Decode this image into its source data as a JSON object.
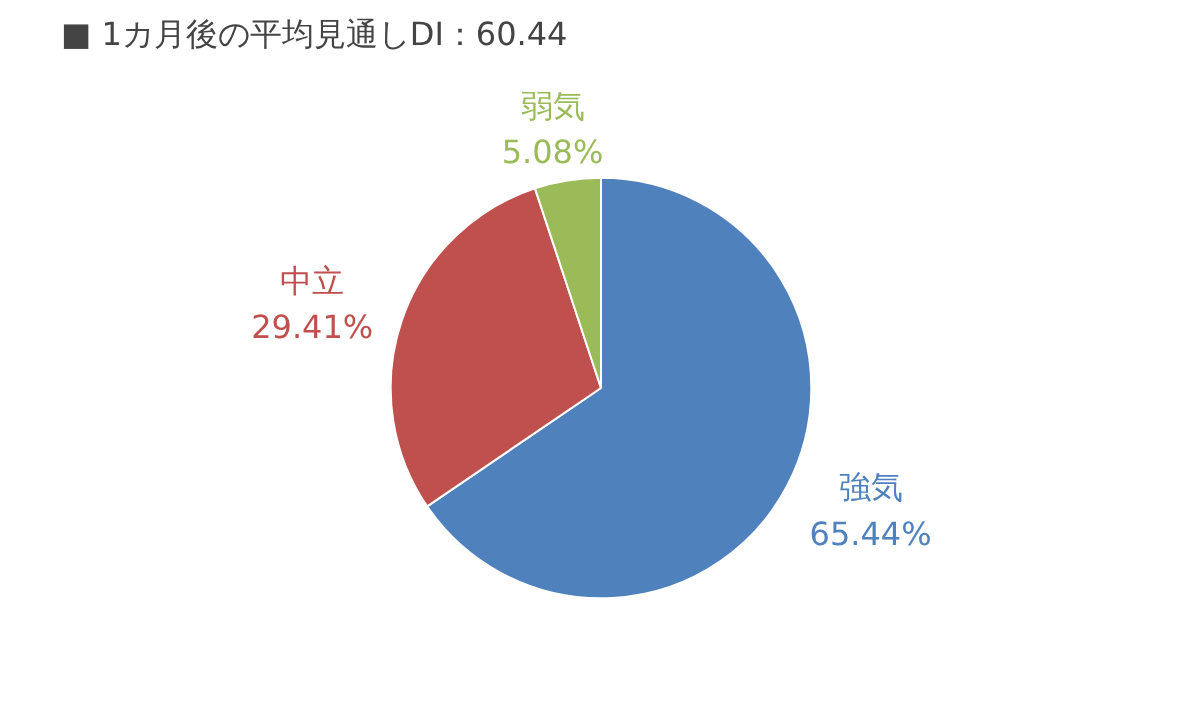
{
  "chart_data": {
    "type": "pie",
    "title": "■ 1カ月後の平均見通しDI：60.44",
    "categories": [
      "強気",
      "中立",
      "弱気"
    ],
    "values": [
      65.44,
      29.41,
      5.08
    ],
    "value_labels": [
      "65.44%",
      "29.41%",
      "5.08%"
    ],
    "colors": [
      "#4f81bd",
      "#c0504d",
      "#9bbb59"
    ],
    "legend": false
  }
}
